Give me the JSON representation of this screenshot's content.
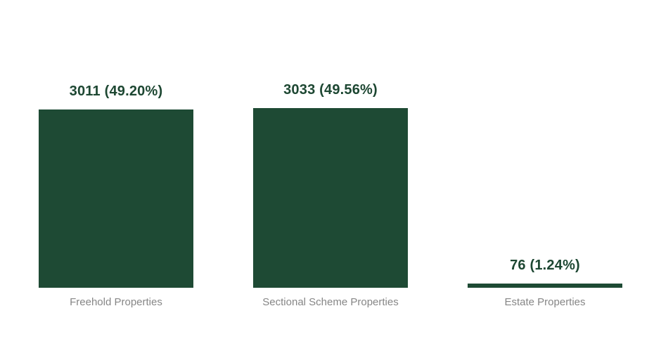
{
  "chart_data": {
    "type": "bar",
    "title": "",
    "xlabel": "",
    "ylabel": "",
    "categories": [
      "Freehold Properties",
      "Sectional Scheme Properties",
      "Estate Properties"
    ],
    "values": [
      3011,
      3033,
      76
    ],
    "percentages": [
      49.2,
      49.56,
      1.24
    ],
    "value_labels": [
      "3011 (49.20%)",
      "3033 (49.56%)",
      "76 (1.24%)"
    ],
    "ylim": [
      0,
      3033
    ],
    "grid": false,
    "legend": false,
    "axes_visible": false,
    "bar_color": "#1e4a34",
    "value_label_color": "#1d4732",
    "category_label_color": "#868686",
    "background": "#ffffff"
  }
}
